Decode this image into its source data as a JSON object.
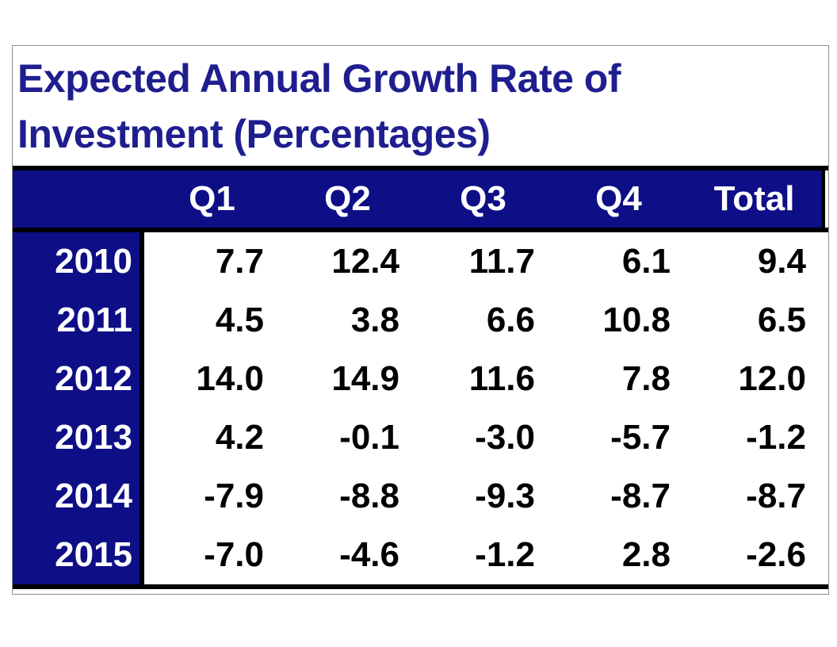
{
  "table": {
    "title_lines": [
      "Expected Annual Growth Rate of",
      "Investment (Percentages)"
    ],
    "column_headers": [
      "Q1",
      "Q2",
      "Q3",
      "Q4",
      "Total"
    ],
    "rows": [
      {
        "year": "2010",
        "values": [
          "7.7",
          "12.4",
          "11.7",
          "6.1",
          "9.4"
        ]
      },
      {
        "year": "2011",
        "values": [
          "4.5",
          "3.8",
          "6.6",
          "10.8",
          "6.5"
        ]
      },
      {
        "year": "2012",
        "values": [
          "14.0",
          "14.9",
          "11.6",
          "7.8",
          "12.0"
        ]
      },
      {
        "year": "2013",
        "values": [
          "4.2",
          "-0.1",
          "-3.0",
          "-5.7",
          "-1.2"
        ]
      },
      {
        "year": "2014",
        "values": [
          "-7.9",
          "-8.8",
          "-9.3",
          "-8.7",
          "-8.7"
        ]
      },
      {
        "year": "2015",
        "values": [
          "-7.0",
          "-4.6",
          "-1.2",
          "2.8",
          "-2.6"
        ]
      }
    ]
  },
  "colors": {
    "band_navy": "#0e0e87",
    "title_navy": "#1f1e8f",
    "grid_black": "#000000",
    "header_text": "#ffffff",
    "data_text": "#000000",
    "outer_border": "#8f8f8f",
    "background": "#ffffff"
  },
  "chart_data": {
    "type": "table",
    "title": "Expected Annual Growth Rate of Investment (Percentages)",
    "columns": [
      "Q1",
      "Q2",
      "Q3",
      "Q4",
      "Total"
    ],
    "row_labels": [
      "2010",
      "2011",
      "2012",
      "2013",
      "2014",
      "2015"
    ],
    "values": [
      [
        7.7,
        12.4,
        11.7,
        6.1,
        9.4
      ],
      [
        4.5,
        3.8,
        6.6,
        10.8,
        6.5
      ],
      [
        14.0,
        14.9,
        11.6,
        7.8,
        12.0
      ],
      [
        4.2,
        -0.1,
        -3.0,
        -5.7,
        -1.2
      ],
      [
        -7.9,
        -8.8,
        -9.3,
        -8.7,
        -8.7
      ],
      [
        -7.0,
        -4.6,
        -1.2,
        2.8,
        -2.6
      ]
    ],
    "layout": {
      "header_background": "#0e0e87",
      "row_label_background": "#0e0e87",
      "value_alignment": "right",
      "legend": "none",
      "grid": "heavy black borders around header row, row-label column and table bottom"
    }
  }
}
